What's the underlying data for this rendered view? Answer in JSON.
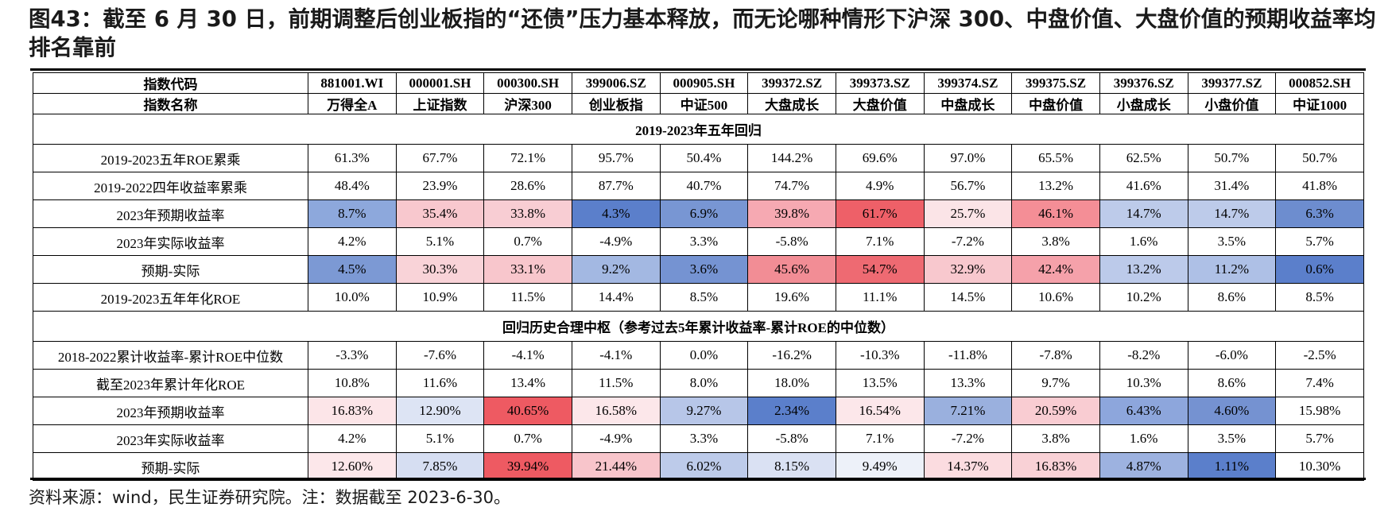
{
  "title": "图43：截至 6 月 30 日，前期调整后创业板指的“还债”压力基本释放，而无论哪种情形下沪深 300、中盘价值、大盘价值的预期收益率均排名靠前",
  "source": "资料来源：wind，民生证券研究院。注：数据截至 2023-6-30。",
  "table": {
    "header_code_label": "指数代码",
    "header_name_label": "指数名称",
    "codes": [
      "881001.WI",
      "000001.SH",
      "000300.SH",
      "399006.SZ",
      "000905.SH",
      "399372.SZ",
      "399373.SZ",
      "399374.SZ",
      "399375.SZ",
      "399376.SZ",
      "399377.SZ",
      "000852.SH"
    ],
    "names": [
      "万得全A",
      "上证指数",
      "沪深300",
      "创业板指",
      "中证500",
      "大盘成长",
      "大盘价值",
      "中盘成长",
      "中盘价值",
      "小盘成长",
      "小盘价值",
      "中证1000"
    ],
    "sections": [
      {
        "title": "2019-2023年五年回归",
        "rows": [
          {
            "label": "2019-2023五年ROE累乘",
            "values": [
              "61.3%",
              "67.7%",
              "72.1%",
              "95.7%",
              "50.4%",
              "144.2%",
              "69.6%",
              "97.0%",
              "65.5%",
              "62.5%",
              "50.7%",
              "50.7%"
            ],
            "colors": null
          },
          {
            "label": "2019-2022四年收益率累乘",
            "values": [
              "48.4%",
              "23.9%",
              "28.6%",
              "87.7%",
              "40.7%",
              "74.7%",
              "4.9%",
              "56.7%",
              "13.2%",
              "41.6%",
              "31.4%",
              "41.8%"
            ],
            "colors": null
          },
          {
            "label": "2023年预期收益率",
            "values": [
              "8.7%",
              "35.4%",
              "33.8%",
              "4.3%",
              "6.9%",
              "39.8%",
              "61.7%",
              "25.7%",
              "46.1%",
              "14.7%",
              "14.7%",
              "6.3%"
            ],
            "colors": [
              "#8DA8DC",
              "#F8C8CE",
              "#F8CDD3",
              "#5B7FCB",
              "#7896D3",
              "#F6A9B2",
              "#EE6068",
              "#FBE4E7",
              "#F48E96",
              "#BDCBEA",
              "#BDCBEA",
              "#6D8DCF"
            ]
          },
          {
            "label": "2023年实际收益率",
            "values": [
              "4.2%",
              "5.1%",
              "0.7%",
              "-4.9%",
              "3.3%",
              "-5.8%",
              "7.1%",
              "-7.2%",
              "3.8%",
              "1.6%",
              "3.5%",
              "5.7%"
            ],
            "colors": null
          },
          {
            "label": "预期-实际",
            "values": [
              "4.5%",
              "30.3%",
              "33.1%",
              "9.2%",
              "3.6%",
              "45.6%",
              "54.7%",
              "32.9%",
              "42.4%",
              "13.2%",
              "11.2%",
              "0.6%"
            ],
            "colors": [
              "#7C99D4",
              "#F9D3D8",
              "#F8C6CC",
              "#A3B8E2",
              "#7593D2",
              "#F28D95",
              "#EE6A72",
              "#F8C8CE",
              "#F5A1AA",
              "#BCCAEA",
              "#AEC0E6",
              "#5B7FCB"
            ]
          },
          {
            "label": "2019-2023五年年化ROE",
            "values": [
              "10.0%",
              "10.9%",
              "11.5%",
              "14.4%",
              "8.5%",
              "19.6%",
              "11.1%",
              "14.5%",
              "10.6%",
              "10.2%",
              "8.6%",
              "8.5%"
            ],
            "colors": null
          }
        ]
      },
      {
        "title": "回归历史合理中枢（参考过去5年累计收益率-累计ROE的中位数）",
        "rows": [
          {
            "label": "2018-2022累计收益率-累计ROE中位数",
            "values": [
              "-3.3%",
              "-7.6%",
              "-4.1%",
              "-4.1%",
              "0.0%",
              "-16.2%",
              "-10.3%",
              "-11.8%",
              "-7.8%",
              "-8.2%",
              "-6.0%",
              "-2.5%"
            ],
            "colors": null
          },
          {
            "label": "截至2023年累计年化ROE",
            "values": [
              "10.8%",
              "11.6%",
              "13.4%",
              "11.5%",
              "8.0%",
              "18.0%",
              "13.5%",
              "13.3%",
              "9.7%",
              "10.3%",
              "8.6%",
              "7.4%"
            ],
            "colors": null
          },
          {
            "label": "2023年预期收益率",
            "values": [
              "16.83%",
              "12.90%",
              "40.65%",
              "16.58%",
              "9.27%",
              "2.34%",
              "16.54%",
              "7.21%",
              "20.59%",
              "6.43%",
              "4.60%",
              "15.98%"
            ],
            "colors": [
              "#FCE5E8",
              "#DDE4F4",
              "#EE5A62",
              "#FCE7EA",
              "#B7C6E8",
              "#5B7FCB",
              "#FCE7EA",
              "#9AB0DE",
              "#F9CCD2",
              "#8DA6DC",
              "#7592D1",
              "#FFFFFF"
            ]
          },
          {
            "label": "2023年实际收益率",
            "values": [
              "4.2%",
              "5.1%",
              "0.7%",
              "-4.9%",
              "3.3%",
              "-5.8%",
              "7.1%",
              "-7.2%",
              "3.8%",
              "1.6%",
              "3.5%",
              "5.7%"
            ],
            "colors": null
          },
          {
            "label": "预期-实际",
            "values": [
              "12.60%",
              "7.85%",
              "39.94%",
              "21.44%",
              "6.02%",
              "8.15%",
              "9.49%",
              "14.37%",
              "16.83%",
              "4.87%",
              "1.11%",
              "10.30%"
            ],
            "colors": [
              "#FCE7EA",
              "#D6DEF2",
              "#EE5A62",
              "#F8C5CB",
              "#BDCBEA",
              "#DAE1F3",
              "#EDF1F9",
              "#FBDCE0",
              "#F9D1D6",
              "#9DB2E0",
              "#5B7FCB",
              "#FFFFFF"
            ]
          }
        ]
      }
    ]
  }
}
